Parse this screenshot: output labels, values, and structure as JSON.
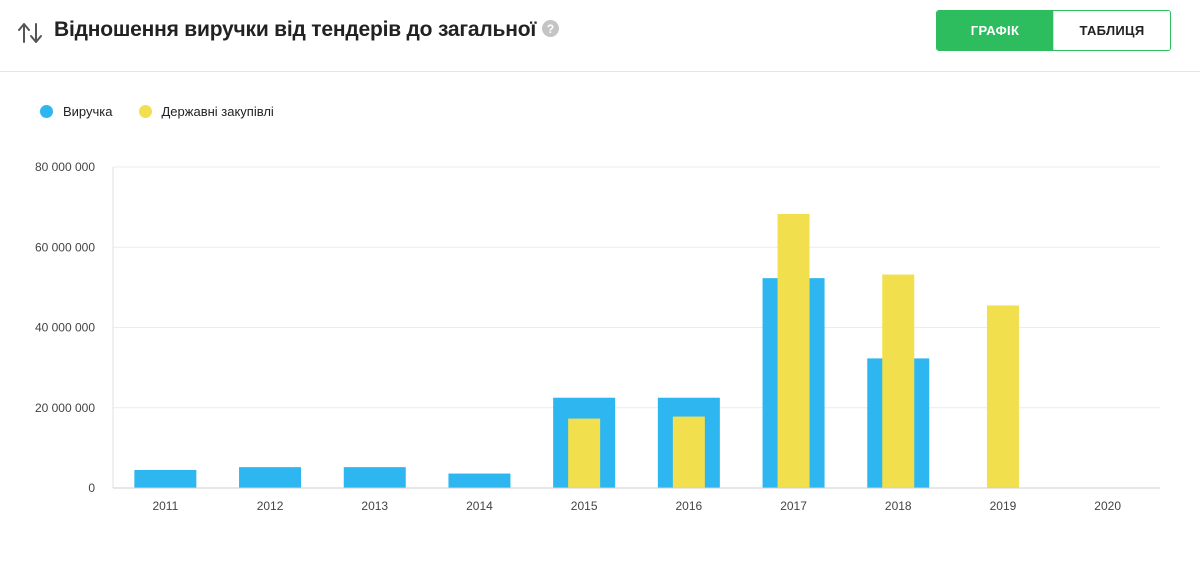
{
  "header": {
    "title": "Відношення виручки від тендерів до загальної",
    "sort_icon": "sort-arrows-icon",
    "help_icon": "question-circle-icon"
  },
  "view_toggle": {
    "chart_label": "ГРАФІК",
    "table_label": "ТАБЛИЦЯ",
    "active": "chart",
    "accent_color": "#2dbd5e"
  },
  "chart_data": {
    "type": "bar",
    "categories": [
      "2011",
      "2012",
      "2013",
      "2014",
      "2015",
      "2016",
      "2017",
      "2018",
      "2019",
      "2020"
    ],
    "series": [
      {
        "name": "Виручка",
        "color": "#2eb6f0",
        "values": [
          4500000,
          5200000,
          5200000,
          3600000,
          22500000,
          22500000,
          52300000,
          32300000,
          null,
          null
        ]
      },
      {
        "name": "Державні закупівлі",
        "color": "#f2df4e",
        "values": [
          null,
          null,
          null,
          null,
          17300000,
          17800000,
          68300000,
          53200000,
          45500000,
          null
        ]
      }
    ],
    "overlapped": true,
    "ylim": [
      0,
      80000000
    ],
    "yticks": [
      0,
      20000000,
      40000000,
      60000000,
      80000000
    ],
    "ytick_labels": [
      "0",
      "20 000 000",
      "40 000 000",
      "60 000 000",
      "80 000 000"
    ],
    "title": "",
    "xlabel": "",
    "ylabel": "",
    "grid": true,
    "legend_position": "top-left"
  }
}
